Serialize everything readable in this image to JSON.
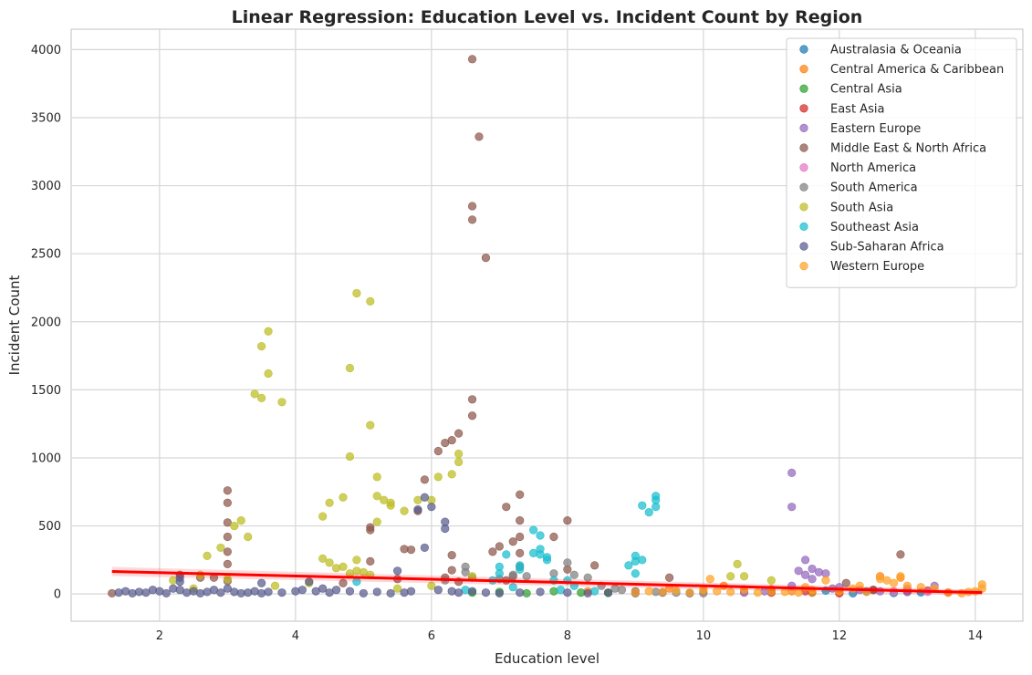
{
  "chart_data": {
    "type": "scatter",
    "title": "Linear Regression: Education Level vs. Incident Count by Region",
    "xlabel": "Education level",
    "ylabel": "Incident Count",
    "xlim": [
      0.7,
      14.7
    ],
    "ylim": [
      -200,
      4150
    ],
    "x_ticks": [
      2,
      4,
      6,
      8,
      10,
      12,
      14
    ],
    "y_ticks": [
      0,
      500,
      1000,
      1500,
      2000,
      2500,
      3000,
      3500,
      4000
    ],
    "grid": true,
    "legend_position": "top-right",
    "regression_line": {
      "color": "#ff0000",
      "x": [
        1.3,
        14.1
      ],
      "y": [
        165,
        10
      ]
    },
    "series": [
      {
        "name": "Australasia & Oceania",
        "color": "#1f77b4",
        "points": [
          [
            11.6,
            10
          ],
          [
            12.0,
            15
          ],
          [
            12.4,
            20
          ],
          [
            12.8,
            8
          ],
          [
            13.0,
            30
          ],
          [
            13.2,
            12
          ],
          [
            12.2,
            5
          ],
          [
            11.8,
            25
          ]
        ]
      },
      {
        "name": "Central America & Caribbean",
        "color": "#ff7f0e",
        "points": [
          [
            8.3,
            20
          ],
          [
            8.6,
            10
          ],
          [
            9.0,
            15
          ],
          [
            9.5,
            40
          ],
          [
            10.0,
            20
          ],
          [
            10.3,
            60
          ],
          [
            10.6,
            15
          ],
          [
            11.0,
            35
          ],
          [
            11.3,
            20
          ],
          [
            11.6,
            10
          ],
          [
            12.0,
            15
          ],
          [
            12.6,
            130
          ],
          [
            12.9,
            120
          ]
        ]
      },
      {
        "name": "Central Asia",
        "color": "#2ca02c",
        "points": [
          [
            6.6,
            10
          ],
          [
            7.0,
            15
          ],
          [
            7.4,
            5
          ],
          [
            7.8,
            20
          ],
          [
            8.2,
            10
          ],
          [
            8.6,
            8
          ]
        ]
      },
      {
        "name": "East Asia",
        "color": "#d62728",
        "points": [
          [
            11.0,
            10
          ],
          [
            11.5,
            20
          ],
          [
            12.0,
            5
          ],
          [
            12.5,
            30
          ],
          [
            13.0,
            15
          ],
          [
            13.3,
            25
          ],
          [
            13.6,
            10
          ]
        ]
      },
      {
        "name": "Eastern Europe",
        "color": "#9467bd",
        "points": [
          [
            11.3,
            890
          ],
          [
            11.3,
            640
          ],
          [
            11.5,
            250
          ],
          [
            11.6,
            185
          ],
          [
            11.4,
            170
          ],
          [
            11.7,
            160
          ],
          [
            11.5,
            140
          ],
          [
            11.8,
            150
          ],
          [
            11.6,
            110
          ],
          [
            11.3,
            60
          ],
          [
            11.9,
            40
          ],
          [
            12.0,
            50
          ],
          [
            12.3,
            30
          ],
          [
            12.6,
            20
          ],
          [
            13.0,
            15
          ],
          [
            13.4,
            60
          ],
          [
            10.6,
            10
          ],
          [
            10.9,
            20
          ]
        ]
      },
      {
        "name": "Middle East & North Africa",
        "color": "#8c564b",
        "points": [
          [
            1.3,
            5
          ],
          [
            2.3,
            140
          ],
          [
            2.6,
            120
          ],
          [
            2.8,
            120
          ],
          [
            3.0,
            760
          ],
          [
            3.0,
            670
          ],
          [
            3.0,
            525
          ],
          [
            3.0,
            420
          ],
          [
            3.0,
            310
          ],
          [
            3.0,
            220
          ],
          [
            3.0,
            95
          ],
          [
            4.7,
            80
          ],
          [
            5.1,
            490
          ],
          [
            5.1,
            470
          ],
          [
            5.1,
            240
          ],
          [
            5.5,
            110
          ],
          [
            5.6,
            330
          ],
          [
            5.7,
            325
          ],
          [
            5.8,
            610
          ],
          [
            5.9,
            840
          ],
          [
            6.1,
            1050
          ],
          [
            6.2,
            1110
          ],
          [
            6.3,
            1130
          ],
          [
            6.4,
            1180
          ],
          [
            6.6,
            1430
          ],
          [
            6.6,
            1310
          ],
          [
            6.6,
            2850
          ],
          [
            6.6,
            2750
          ],
          [
            6.6,
            3930
          ],
          [
            6.7,
            3360
          ],
          [
            6.8,
            2470
          ],
          [
            6.3,
            285
          ],
          [
            6.3,
            175
          ],
          [
            6.2,
            120
          ],
          [
            6.4,
            90
          ],
          [
            6.9,
            310
          ],
          [
            7.0,
            350
          ],
          [
            7.1,
            640
          ],
          [
            7.2,
            385
          ],
          [
            7.3,
            730
          ],
          [
            7.3,
            540
          ],
          [
            7.3,
            420
          ],
          [
            7.3,
            300
          ],
          [
            7.3,
            200
          ],
          [
            7.2,
            130
          ],
          [
            7.1,
            100
          ],
          [
            7.8,
            420
          ],
          [
            8.0,
            540
          ],
          [
            8.0,
            180
          ],
          [
            8.4,
            210
          ],
          [
            9.5,
            120
          ],
          [
            12.1,
            80
          ],
          [
            12.9,
            290
          ],
          [
            12.5,
            30
          ],
          [
            11.0,
            20
          ]
        ]
      },
      {
        "name": "North America",
        "color": "#e377c2",
        "points": [
          [
            12.8,
            20
          ],
          [
            13.0,
            40
          ],
          [
            13.3,
            15
          ]
        ]
      },
      {
        "name": "South America",
        "color": "#7f7f7f",
        "points": [
          [
            6.2,
            100
          ],
          [
            6.5,
            200
          ],
          [
            6.5,
            160
          ],
          [
            6.6,
            120
          ],
          [
            7.0,
            110
          ],
          [
            7.2,
            140
          ],
          [
            7.4,
            130
          ],
          [
            7.8,
            150
          ],
          [
            8.0,
            230
          ],
          [
            8.1,
            140
          ],
          [
            8.3,
            120
          ],
          [
            8.5,
            60
          ],
          [
            8.8,
            30
          ],
          [
            9.0,
            20
          ],
          [
            9.3,
            15
          ],
          [
            9.6,
            10
          ],
          [
            10.0,
            5
          ],
          [
            8.7,
            40
          ]
        ]
      },
      {
        "name": "South Asia",
        "color": "#bcbd22",
        "points": [
          [
            2.5,
            40
          ],
          [
            2.7,
            280
          ],
          [
            2.9,
            340
          ],
          [
            3.1,
            500
          ],
          [
            3.2,
            540
          ],
          [
            3.3,
            420
          ],
          [
            3.4,
            1470
          ],
          [
            3.5,
            1440
          ],
          [
            3.5,
            1820
          ],
          [
            3.6,
            1930
          ],
          [
            3.6,
            1620
          ],
          [
            3.8,
            1410
          ],
          [
            4.4,
            570
          ],
          [
            4.4,
            260
          ],
          [
            4.5,
            670
          ],
          [
            4.6,
            190
          ],
          [
            4.7,
            200
          ],
          [
            4.7,
            710
          ],
          [
            4.5,
            230
          ],
          [
            4.8,
            1010
          ],
          [
            4.8,
            1660
          ],
          [
            4.8,
            150
          ],
          [
            4.9,
            2210
          ],
          [
            4.9,
            170
          ],
          [
            4.9,
            250
          ],
          [
            5.0,
            160
          ],
          [
            5.1,
            2150
          ],
          [
            5.1,
            1240
          ],
          [
            5.1,
            140
          ],
          [
            5.2,
            860
          ],
          [
            5.2,
            720
          ],
          [
            5.2,
            530
          ],
          [
            5.3,
            690
          ],
          [
            5.4,
            670
          ],
          [
            5.4,
            650
          ],
          [
            5.6,
            610
          ],
          [
            5.8,
            690
          ],
          [
            6.0,
            690
          ],
          [
            6.1,
            860
          ],
          [
            6.3,
            880
          ],
          [
            6.4,
            1030
          ],
          [
            6.4,
            970
          ],
          [
            6.6,
            130
          ],
          [
            10.4,
            130
          ],
          [
            10.5,
            220
          ],
          [
            10.6,
            130
          ],
          [
            11.0,
            100
          ],
          [
            2.2,
            100
          ],
          [
            2.6,
            140
          ],
          [
            3.0,
            110
          ],
          [
            3.7,
            60
          ],
          [
            4.2,
            80
          ],
          [
            5.5,
            40
          ],
          [
            6.0,
            60
          ]
        ]
      },
      {
        "name": "Southeast Asia",
        "color": "#17becf",
        "points": [
          [
            6.9,
            100
          ],
          [
            7.0,
            150
          ],
          [
            7.0,
            200
          ],
          [
            7.1,
            290
          ],
          [
            7.3,
            180
          ],
          [
            7.3,
            210
          ],
          [
            7.5,
            470
          ],
          [
            7.5,
            300
          ],
          [
            7.6,
            430
          ],
          [
            7.6,
            330
          ],
          [
            7.6,
            290
          ],
          [
            7.7,
            270
          ],
          [
            7.7,
            250
          ],
          [
            7.8,
            100
          ],
          [
            8.0,
            100
          ],
          [
            8.1,
            60
          ],
          [
            8.9,
            210
          ],
          [
            9.0,
            150
          ],
          [
            9.0,
            280
          ],
          [
            9.0,
            240
          ],
          [
            9.1,
            250
          ],
          [
            9.1,
            650
          ],
          [
            9.2,
            600
          ],
          [
            9.3,
            640
          ],
          [
            9.3,
            720
          ],
          [
            9.3,
            690
          ],
          [
            7.2,
            50
          ],
          [
            7.9,
            30
          ],
          [
            8.4,
            20
          ],
          [
            6.5,
            30
          ],
          [
            4.9,
            90
          ]
        ]
      },
      {
        "name": "Sub-Saharan Africa",
        "color": "#585a8c",
        "points": [
          [
            1.4,
            10
          ],
          [
            1.5,
            20
          ],
          [
            1.6,
            5
          ],
          [
            1.7,
            15
          ],
          [
            1.8,
            10
          ],
          [
            1.9,
            30
          ],
          [
            2.0,
            20
          ],
          [
            2.1,
            5
          ],
          [
            2.2,
            40
          ],
          [
            2.3,
            30
          ],
          [
            2.3,
            120
          ],
          [
            2.3,
            90
          ],
          [
            2.4,
            10
          ],
          [
            2.5,
            20
          ],
          [
            2.6,
            5
          ],
          [
            2.7,
            15
          ],
          [
            2.8,
            30
          ],
          [
            2.9,
            10
          ],
          [
            3.0,
            40
          ],
          [
            3.1,
            15
          ],
          [
            3.2,
            5
          ],
          [
            3.3,
            10
          ],
          [
            3.4,
            20
          ],
          [
            3.5,
            80
          ],
          [
            3.5,
            5
          ],
          [
            3.6,
            15
          ],
          [
            3.8,
            10
          ],
          [
            4.0,
            20
          ],
          [
            4.1,
            30
          ],
          [
            4.2,
            90
          ],
          [
            4.3,
            20
          ],
          [
            4.4,
            40
          ],
          [
            4.5,
            10
          ],
          [
            4.6,
            30
          ],
          [
            4.8,
            20
          ],
          [
            5.0,
            5
          ],
          [
            5.2,
            15
          ],
          [
            5.4,
            5
          ],
          [
            5.5,
            170
          ],
          [
            5.6,
            10
          ],
          [
            5.7,
            20
          ],
          [
            5.8,
            620
          ],
          [
            5.9,
            340
          ],
          [
            5.9,
            710
          ],
          [
            6.0,
            640
          ],
          [
            6.1,
            30
          ],
          [
            6.2,
            480
          ],
          [
            6.2,
            530
          ],
          [
            6.3,
            20
          ],
          [
            6.4,
            10
          ],
          [
            6.6,
            20
          ],
          [
            6.8,
            10
          ],
          [
            7.0,
            5
          ],
          [
            7.3,
            10
          ],
          [
            7.6,
            15
          ],
          [
            8.0,
            10
          ],
          [
            8.3,
            5
          ],
          [
            8.6,
            10
          ],
          [
            9.0,
            5
          ],
          [
            9.4,
            10
          ],
          [
            9.8,
            5
          ]
        ]
      },
      {
        "name": "Western Europe",
        "color": "#ffa126",
        "points": [
          [
            9.0,
            10
          ],
          [
            9.2,
            20
          ],
          [
            9.4,
            15
          ],
          [
            9.6,
            25
          ],
          [
            9.8,
            10
          ],
          [
            10.0,
            30
          ],
          [
            10.1,
            110
          ],
          [
            10.2,
            20
          ],
          [
            10.4,
            15
          ],
          [
            10.6,
            35
          ],
          [
            10.8,
            10
          ],
          [
            11.0,
            20
          ],
          [
            11.2,
            15
          ],
          [
            11.4,
            10
          ],
          [
            11.6,
            30
          ],
          [
            11.8,
            100
          ],
          [
            12.0,
            20
          ],
          [
            12.2,
            40
          ],
          [
            12.4,
            15
          ],
          [
            12.6,
            110
          ],
          [
            12.7,
            100
          ],
          [
            12.8,
            80
          ],
          [
            12.9,
            130
          ],
          [
            13.0,
            60
          ],
          [
            13.2,
            50
          ],
          [
            13.4,
            40
          ],
          [
            13.6,
            10
          ],
          [
            13.8,
            5
          ],
          [
            14.0,
            20
          ],
          [
            14.1,
            70
          ],
          [
            14.1,
            40
          ],
          [
            13.9,
            15
          ],
          [
            12.3,
            60
          ],
          [
            11.5,
            50
          ]
        ]
      }
    ]
  }
}
